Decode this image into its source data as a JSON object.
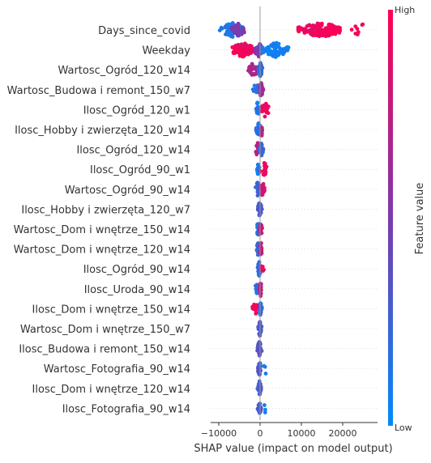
{
  "chart_data": {
    "type": "scatter",
    "subtype": "shap-beeswarm",
    "title": "",
    "xlabel": "SHAP value (impact on model output)",
    "ylabel": "",
    "xlim": [
      -12000,
      27500
    ],
    "xticks": [
      -10000,
      0,
      10000,
      20000
    ],
    "xtick_labels": [
      "−10000",
      "0",
      "10000",
      "20000"
    ],
    "grid": false,
    "colorbar": {
      "label": "Feature value",
      "high_label": "High",
      "low_label": "Low",
      "low_color": "#008afb",
      "mid_color": "#7c3aad",
      "high_color": "#ff0052",
      "placement": "right"
    },
    "features": [
      {
        "name": "Days_since_covid",
        "groups": [
          {
            "range": [
              -10000,
              -3500
            ],
            "count": 70,
            "value": 0.1
          },
          {
            "range": [
              -7000,
              -3500
            ],
            "count": 40,
            "value": 0.5
          },
          {
            "range": [
              8000,
              21500
            ],
            "count": 140,
            "value": 0.95
          },
          {
            "range": [
              21500,
              27000
            ],
            "count": 8,
            "value": 0.95
          }
        ]
      },
      {
        "name": "Weekday",
        "groups": [
          {
            "range": [
              -7500,
              -800
            ],
            "count": 110,
            "value": 0.95
          },
          {
            "range": [
              -1500,
              800
            ],
            "count": 30,
            "value": 0.5
          },
          {
            "range": [
              0,
              7500
            ],
            "count": 90,
            "value": 0.05
          }
        ]
      },
      {
        "name": "Wartosc_Ogród_120_w14",
        "groups": [
          {
            "range": [
              -3000,
              -300
            ],
            "count": 22,
            "value": 0.7
          },
          {
            "range": [
              -500,
              700
            ],
            "count": 40,
            "value": 0.2
          }
        ]
      },
      {
        "name": "Wartosc_Budowa i remont_150_w7",
        "groups": [
          {
            "range": [
              -1800,
              0
            ],
            "count": 12,
            "value": 0.15
          },
          {
            "range": [
              -300,
              800
            ],
            "count": 40,
            "value": 0.6
          }
        ]
      },
      {
        "name": "Ilosc_Ogród_120_w1",
        "groups": [
          {
            "range": [
              -1200,
              0
            ],
            "count": 25,
            "value": 0.1
          },
          {
            "range": [
              0,
              2500
            ],
            "count": 20,
            "value": 0.95
          }
        ]
      },
      {
        "name": "Ilosc_Hobby i zwierzęta_120_w14",
        "groups": [
          {
            "range": [
              -1000,
              300
            ],
            "count": 35,
            "value": 0.2
          },
          {
            "range": [
              0,
              800
            ],
            "count": 10,
            "value": 0.7
          }
        ]
      },
      {
        "name": "Ilosc_Ogród_120_w14",
        "groups": [
          {
            "range": [
              -1200,
              0
            ],
            "count": 20,
            "value": 0.75
          },
          {
            "range": [
              -200,
              800
            ],
            "count": 28,
            "value": 0.2
          }
        ]
      },
      {
        "name": "Ilosc_Ogród_90_w1",
        "groups": [
          {
            "range": [
              -800,
              0
            ],
            "count": 30,
            "value": 0.1
          },
          {
            "range": [
              0,
              2000
            ],
            "count": 15,
            "value": 0.95
          }
        ]
      },
      {
        "name": "Wartosc_Ogród_90_w14",
        "groups": [
          {
            "range": [
              -1200,
              0
            ],
            "count": 20,
            "value": 0.25
          },
          {
            "range": [
              0,
              1200
            ],
            "count": 20,
            "value": 0.8
          }
        ]
      },
      {
        "name": "Ilosc_Hobby i zwierzęta_120_w7",
        "groups": [
          {
            "range": [
              -700,
              500
            ],
            "count": 38,
            "value": 0.3
          }
        ]
      },
      {
        "name": "Wartosc_Dom i wnętrze_150_w14",
        "groups": [
          {
            "range": [
              -900,
              0
            ],
            "count": 22,
            "value": 0.15
          },
          {
            "range": [
              -200,
              600
            ],
            "count": 20,
            "value": 0.8
          }
        ]
      },
      {
        "name": "Wartosc_Dom i wnętrze_120_w14",
        "groups": [
          {
            "range": [
              -900,
              0
            ],
            "count": 22,
            "value": 0.2
          },
          {
            "range": [
              -200,
              600
            ],
            "count": 20,
            "value": 0.75
          }
        ]
      },
      {
        "name": "Ilosc_Ogród_90_w14",
        "groups": [
          {
            "range": [
              -700,
              300
            ],
            "count": 30,
            "value": 0.2
          },
          {
            "range": [
              200,
              1000
            ],
            "count": 6,
            "value": 0.9
          }
        ]
      },
      {
        "name": "Ilosc_Uroda_90_w14",
        "groups": [
          {
            "range": [
              -1800,
              0
            ],
            "count": 15,
            "value": 0.15
          },
          {
            "range": [
              -200,
              500
            ],
            "count": 25,
            "value": 0.75
          }
        ]
      },
      {
        "name": "Ilosc_Dom i wnętrze_150_w14",
        "groups": [
          {
            "range": [
              -2000,
              -200
            ],
            "count": 14,
            "value": 0.95
          },
          {
            "range": [
              -300,
              500
            ],
            "count": 28,
            "value": 0.2
          }
        ]
      },
      {
        "name": "Wartosc_Dom i wnętrze_150_w7",
        "groups": [
          {
            "range": [
              -600,
              500
            ],
            "count": 36,
            "value": 0.3
          }
        ]
      },
      {
        "name": "Ilosc_Budowa i remont_150_w14",
        "groups": [
          {
            "range": [
              -800,
              500
            ],
            "count": 36,
            "value": 0.35
          }
        ]
      },
      {
        "name": "Wartosc_Fotografia_90_w14",
        "groups": [
          {
            "range": [
              -600,
              300
            ],
            "count": 30,
            "value": 0.3
          },
          {
            "range": [
              800,
              2000
            ],
            "count": 3,
            "value": 0.05
          }
        ]
      },
      {
        "name": "Ilosc_Dom i wnętrze_120_w14",
        "groups": [
          {
            "range": [
              -700,
              400
            ],
            "count": 34,
            "value": 0.3
          }
        ]
      },
      {
        "name": "Ilosc_Fotografia_90_w14",
        "groups": [
          {
            "range": [
              -600,
              300
            ],
            "count": 30,
            "value": 0.3
          },
          {
            "range": [
              700,
              1500
            ],
            "count": 3,
            "value": 0.05
          }
        ]
      }
    ]
  }
}
